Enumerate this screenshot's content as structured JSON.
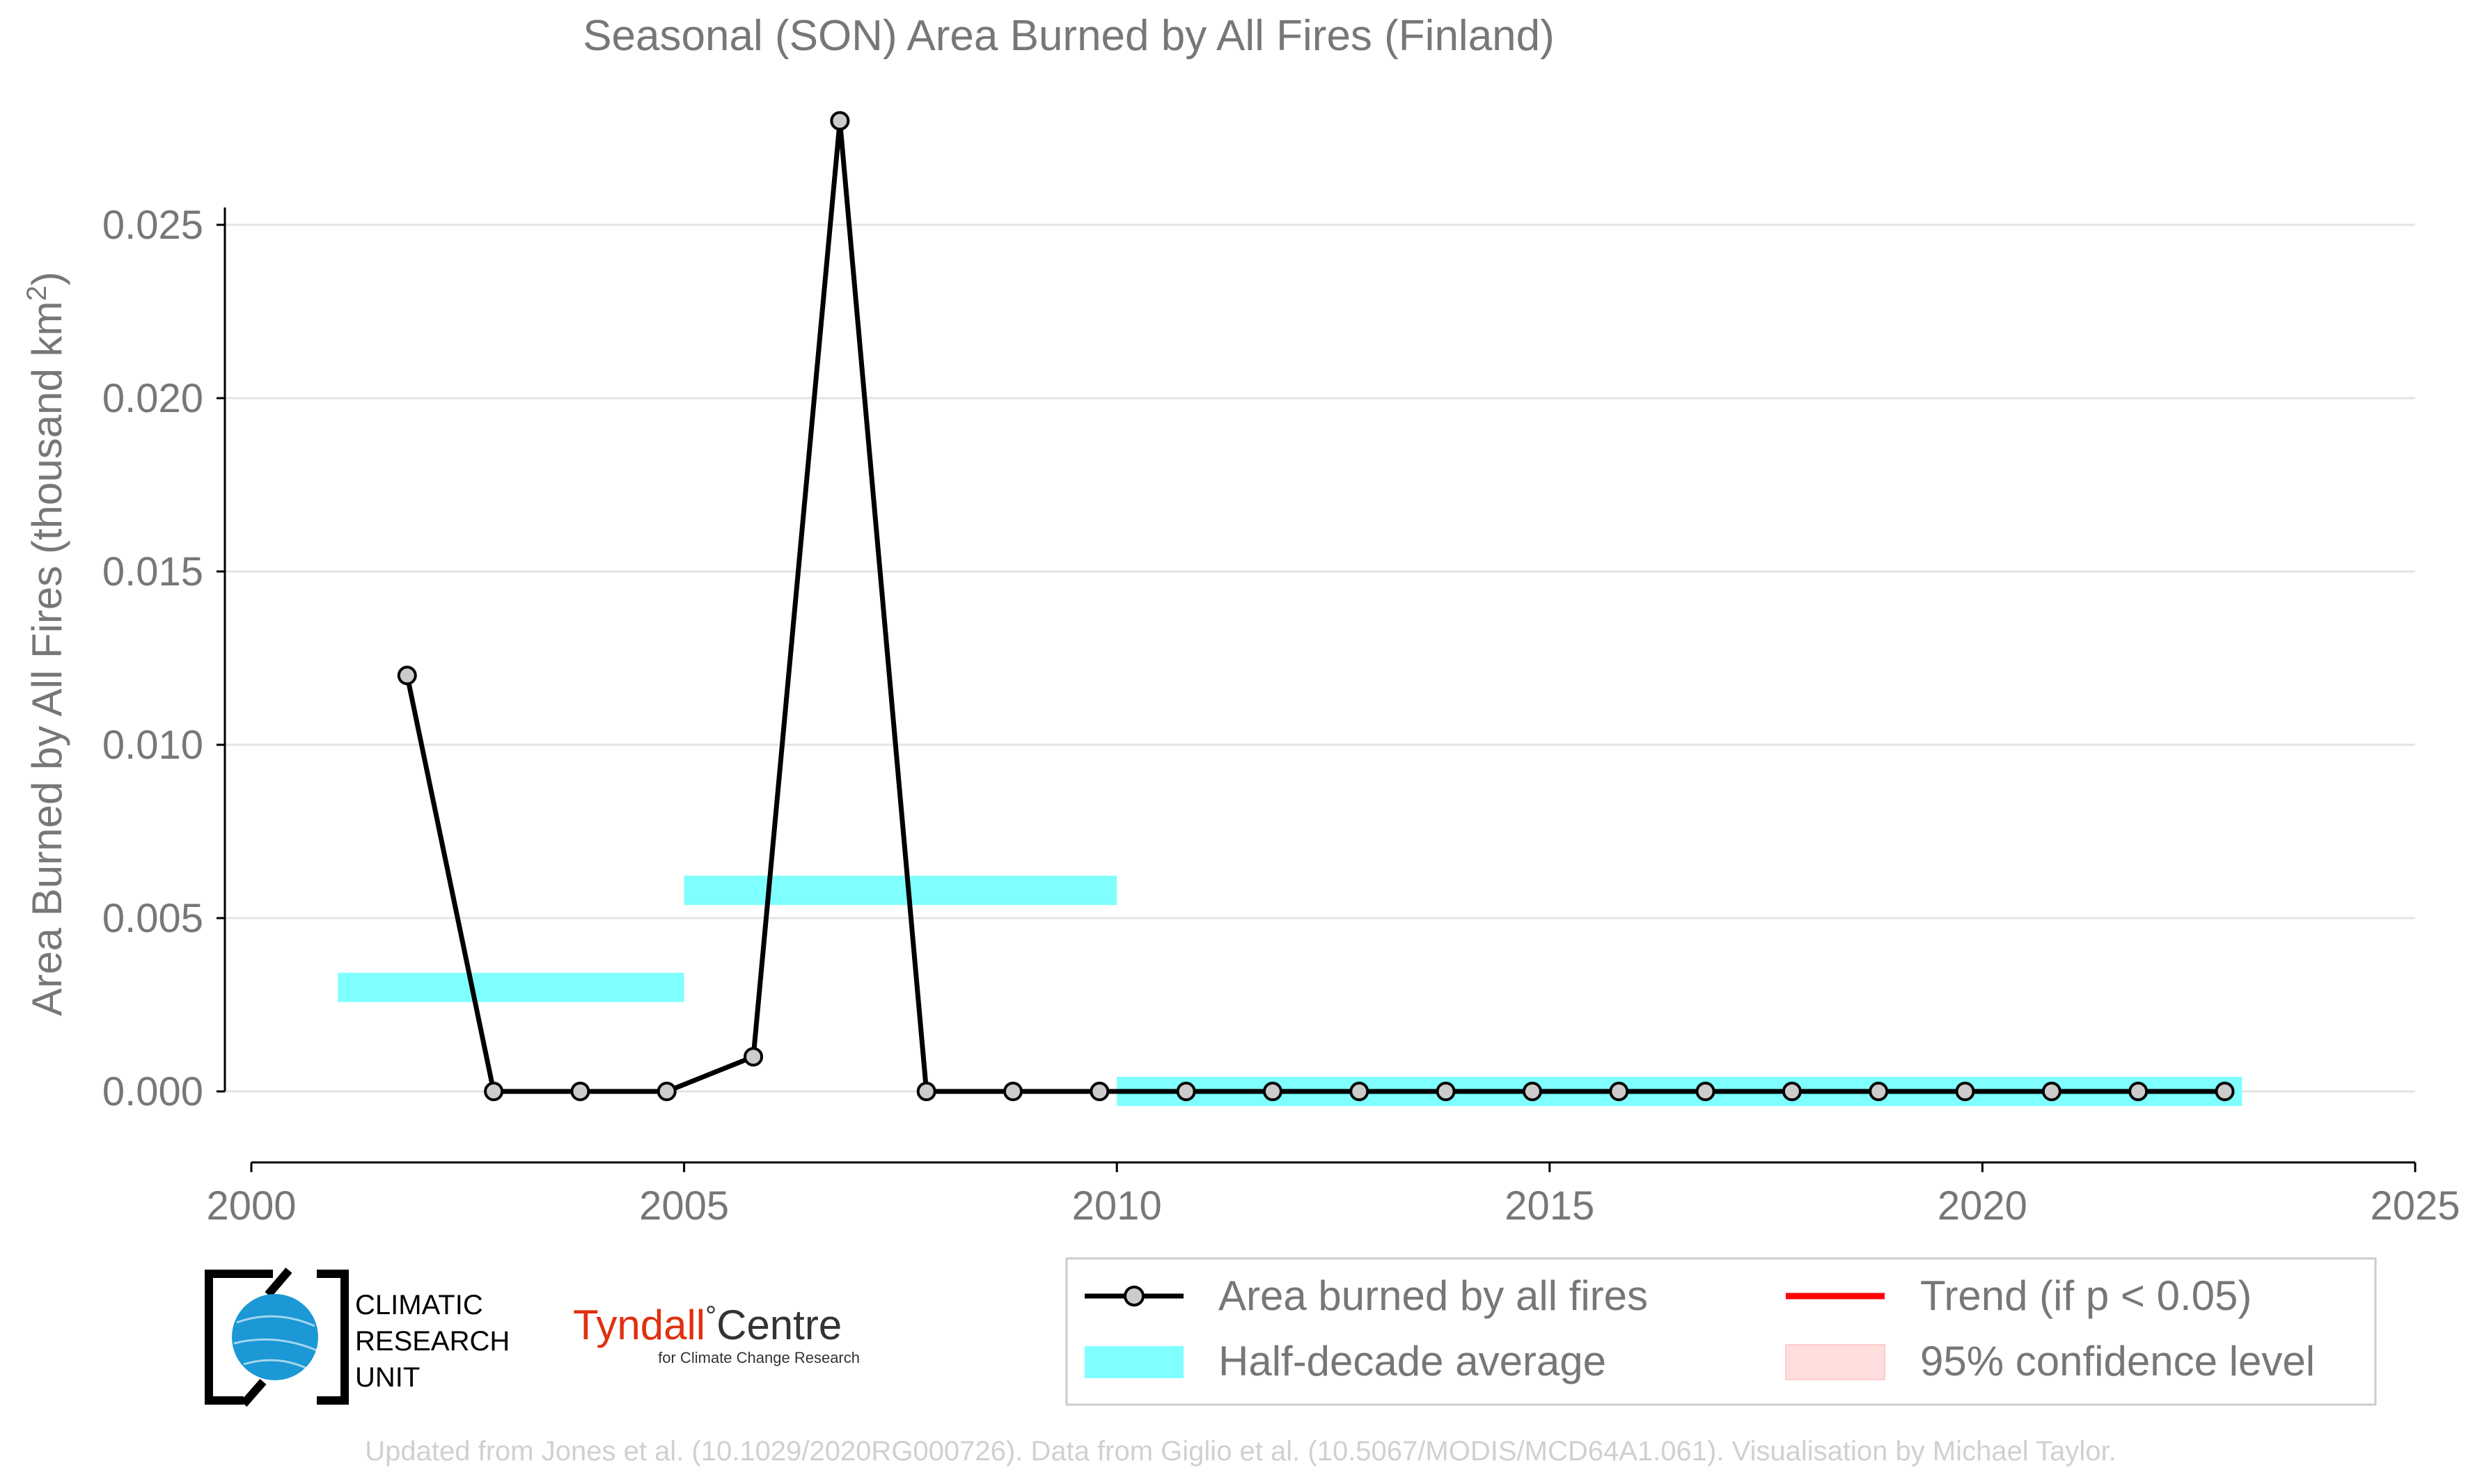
{
  "chart_data": {
    "type": "line",
    "title": "Seasonal (SON) Area Burned by All Fires (Finland)",
    "ylabel_main": "Area Burned by All Fires (thousand km",
    "ylabel_sup": "2",
    "ylabel_tail": ")",
    "xlim": [
      2000,
      2025
    ],
    "ylim": [
      -0.002,
      0.0285
    ],
    "x_ticks": [
      2000,
      2005,
      2010,
      2015,
      2020,
      2025
    ],
    "x_tick_labels": [
      "2000",
      "2005",
      "2010",
      "2015",
      "2020",
      "2025"
    ],
    "y_ticks": [
      0.0,
      0.005,
      0.01,
      0.015,
      0.02,
      0.025
    ],
    "y_tick_labels": [
      "0.000",
      "0.005",
      "0.010",
      "0.015",
      "0.020",
      "0.025"
    ],
    "grid": "horizontal",
    "series": [
      {
        "name": "Area burned by all fires",
        "color": "#000000",
        "marker_fill": "#cccccc",
        "x": [
          2001.8,
          2002.8,
          2003.8,
          2004.8,
          2005.8,
          2006.8,
          2007.8,
          2008.8,
          2009.8,
          2010.8,
          2011.8,
          2012.8,
          2013.8,
          2014.8,
          2015.8,
          2016.8,
          2017.8,
          2018.8,
          2019.8,
          2020.8,
          2021.8,
          2022.8
        ],
        "values": [
          0.012,
          0.0,
          0.0,
          0.0,
          0.001,
          0.028,
          0.0,
          0.0,
          0.0,
          0.0,
          0.0,
          0.0,
          0.0,
          0.0,
          0.0,
          0.0,
          0.0,
          0.0,
          0.0,
          0.0,
          0.0,
          0.0
        ]
      }
    ],
    "half_decade_average": {
      "name": "Half-decade average",
      "color": "#7fffff",
      "segments": [
        {
          "x_start": 2001,
          "x_end": 2005,
          "value": 0.003
        },
        {
          "x_start": 2005,
          "x_end": 2010,
          "value": 0.0058
        },
        {
          "x_start": 2010,
          "x_end": 2023,
          "value": 0.0
        }
      ]
    },
    "legend": {
      "placement": "bottom-right",
      "items": [
        {
          "label": "Area burned by all fires",
          "kind": "line-marker",
          "color": "#000000"
        },
        {
          "label": "Trend (if p < 0.05)",
          "kind": "line",
          "color": "#ff0000"
        },
        {
          "label": "Half-decade average",
          "kind": "band",
          "color": "#7fffff"
        },
        {
          "label": "95% confidence level",
          "kind": "patch",
          "color": "#ffdddd"
        }
      ]
    }
  },
  "logos": {
    "cru_lines": [
      "CLIMATIC",
      "RESEARCH",
      "UNIT"
    ],
    "tyndall_main": "Tyndall",
    "tyndall_degree": "°",
    "tyndall_centre": "Centre",
    "tyndall_sub": "for Climate Change Research"
  },
  "footer": {
    "credit": "Updated from Jones et al. (10.1029/2020RG000726). Data from Giglio et al. (10.5067/MODIS/MCD64A1.061). Visualisation by Michael Taylor."
  },
  "colors": {
    "text_gray": "#777777",
    "grid": "#e3e3e3",
    "footer_gray": "#d0d0d0",
    "tyndall_red": "#e03010"
  }
}
